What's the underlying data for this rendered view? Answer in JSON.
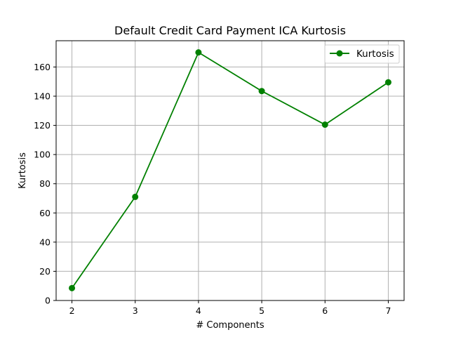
{
  "chart_data": {
    "type": "line",
    "title": "Default Credit Card Payment ICA Kurtosis",
    "xlabel": "# Components",
    "ylabel": "Kurtosis",
    "x": [
      2,
      3,
      4,
      5,
      6,
      7
    ],
    "xticks": [
      2,
      3,
      4,
      5,
      6,
      7
    ],
    "yticks": [
      0,
      20,
      40,
      60,
      80,
      100,
      120,
      140,
      160
    ],
    "xlim": [
      1.75,
      7.25
    ],
    "ylim": [
      0,
      178
    ],
    "grid": true,
    "legend_position": "top-right",
    "series": [
      {
        "name": "Kurtosis",
        "color": "#008000",
        "marker": "circle",
        "values": [
          8.5,
          71.0,
          170.0,
          143.5,
          120.5,
          149.5
        ]
      }
    ]
  }
}
